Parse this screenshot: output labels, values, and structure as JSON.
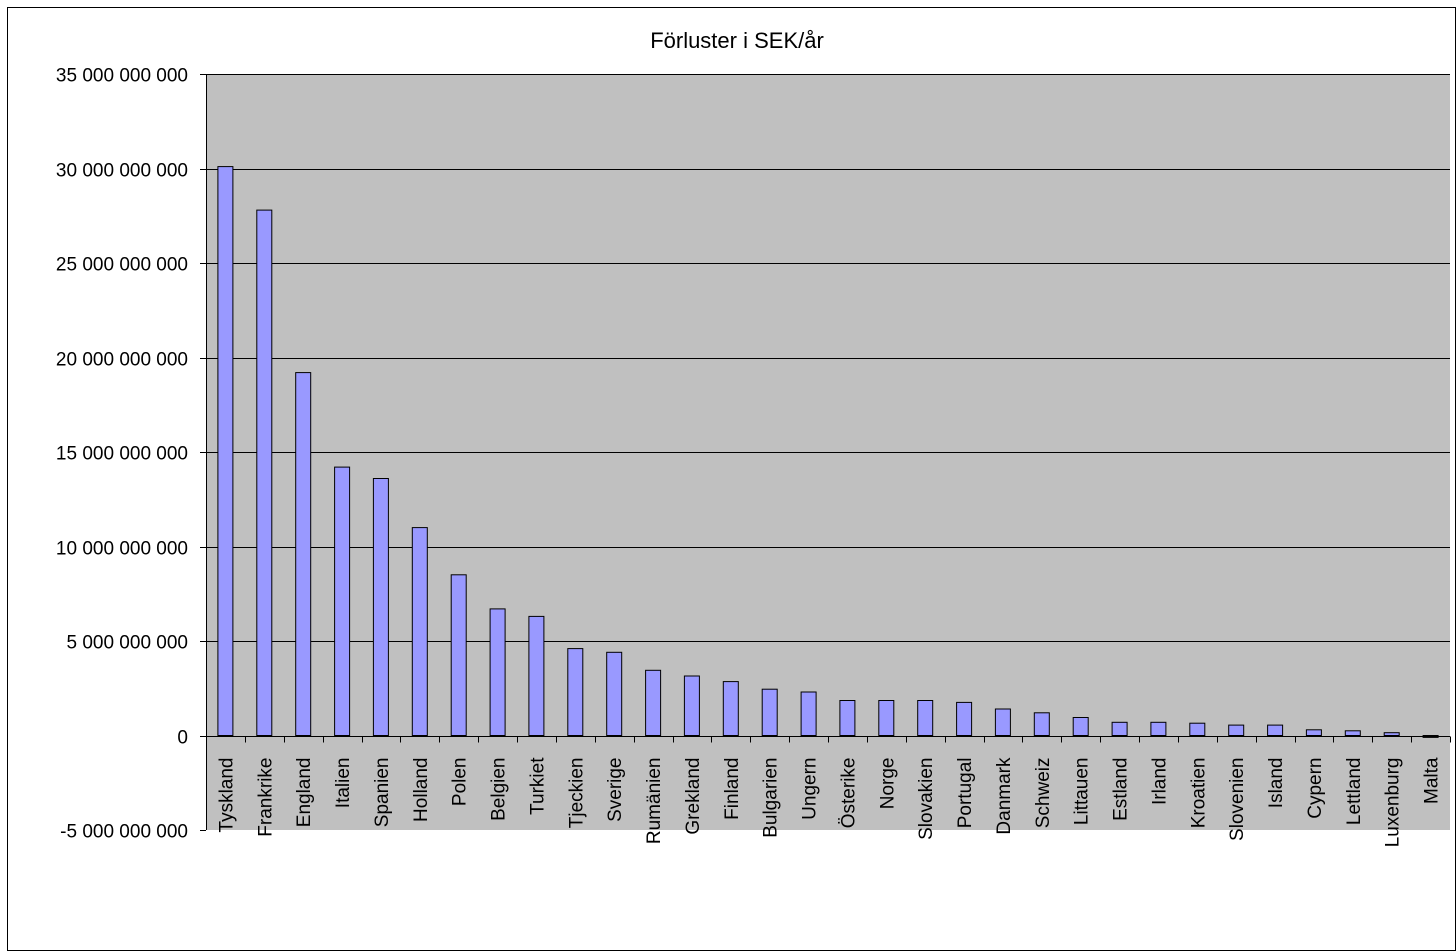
{
  "chart_data": {
    "type": "bar",
    "title": "Förluster i SEK/år",
    "xlabel": "",
    "ylabel": "",
    "ylim": [
      -5000000000,
      35000000000
    ],
    "yticks": [
      35000000000,
      30000000000,
      25000000000,
      20000000000,
      15000000000,
      10000000000,
      5000000000,
      0,
      -5000000000
    ],
    "ytick_labels": [
      "35 000 000 000",
      "30 000 000 000",
      "25 000 000 000",
      "20 000 000 000",
      "15 000 000 000",
      "10 000 000 000",
      "5 000 000 000",
      "0",
      "-5 000 000 000"
    ],
    "grid": true,
    "legend": false,
    "categories": [
      "Tyskland",
      "Frankrike",
      "England",
      "Italien",
      "Spanien",
      "Holland",
      "Polen",
      "Belgien",
      "Turkiet",
      "Tjeckien",
      "Sverige",
      "Rumänien",
      "Grekland",
      "Finland",
      "Bulgarien",
      "Ungern",
      "Österike",
      "Norge",
      "Slovakien",
      "Portugal",
      "Danmark",
      "Schweiz",
      "Littauen",
      "Estland",
      "Irland",
      "Kroatien",
      "Slovenien",
      "Island",
      "Cypern",
      "Lettland",
      "Luxenburg",
      "Malta"
    ],
    "values": [
      30100000000,
      27800000000,
      19200000000,
      14200000000,
      13600000000,
      11000000000,
      8500000000,
      6700000000,
      6300000000,
      4600000000,
      4400000000,
      3450000000,
      3150000000,
      2850000000,
      2450000000,
      2300000000,
      1850000000,
      1850000000,
      1850000000,
      1750000000,
      1400000000,
      1200000000,
      950000000,
      700000000,
      700000000,
      650000000,
      550000000,
      550000000,
      300000000,
      250000000,
      150000000,
      -100000000
    ],
    "colors": {
      "plot_background": "#c0c0c0",
      "bar_fill": "#9999ff",
      "bar_stroke": "#000000",
      "gridline": "#000000"
    }
  }
}
